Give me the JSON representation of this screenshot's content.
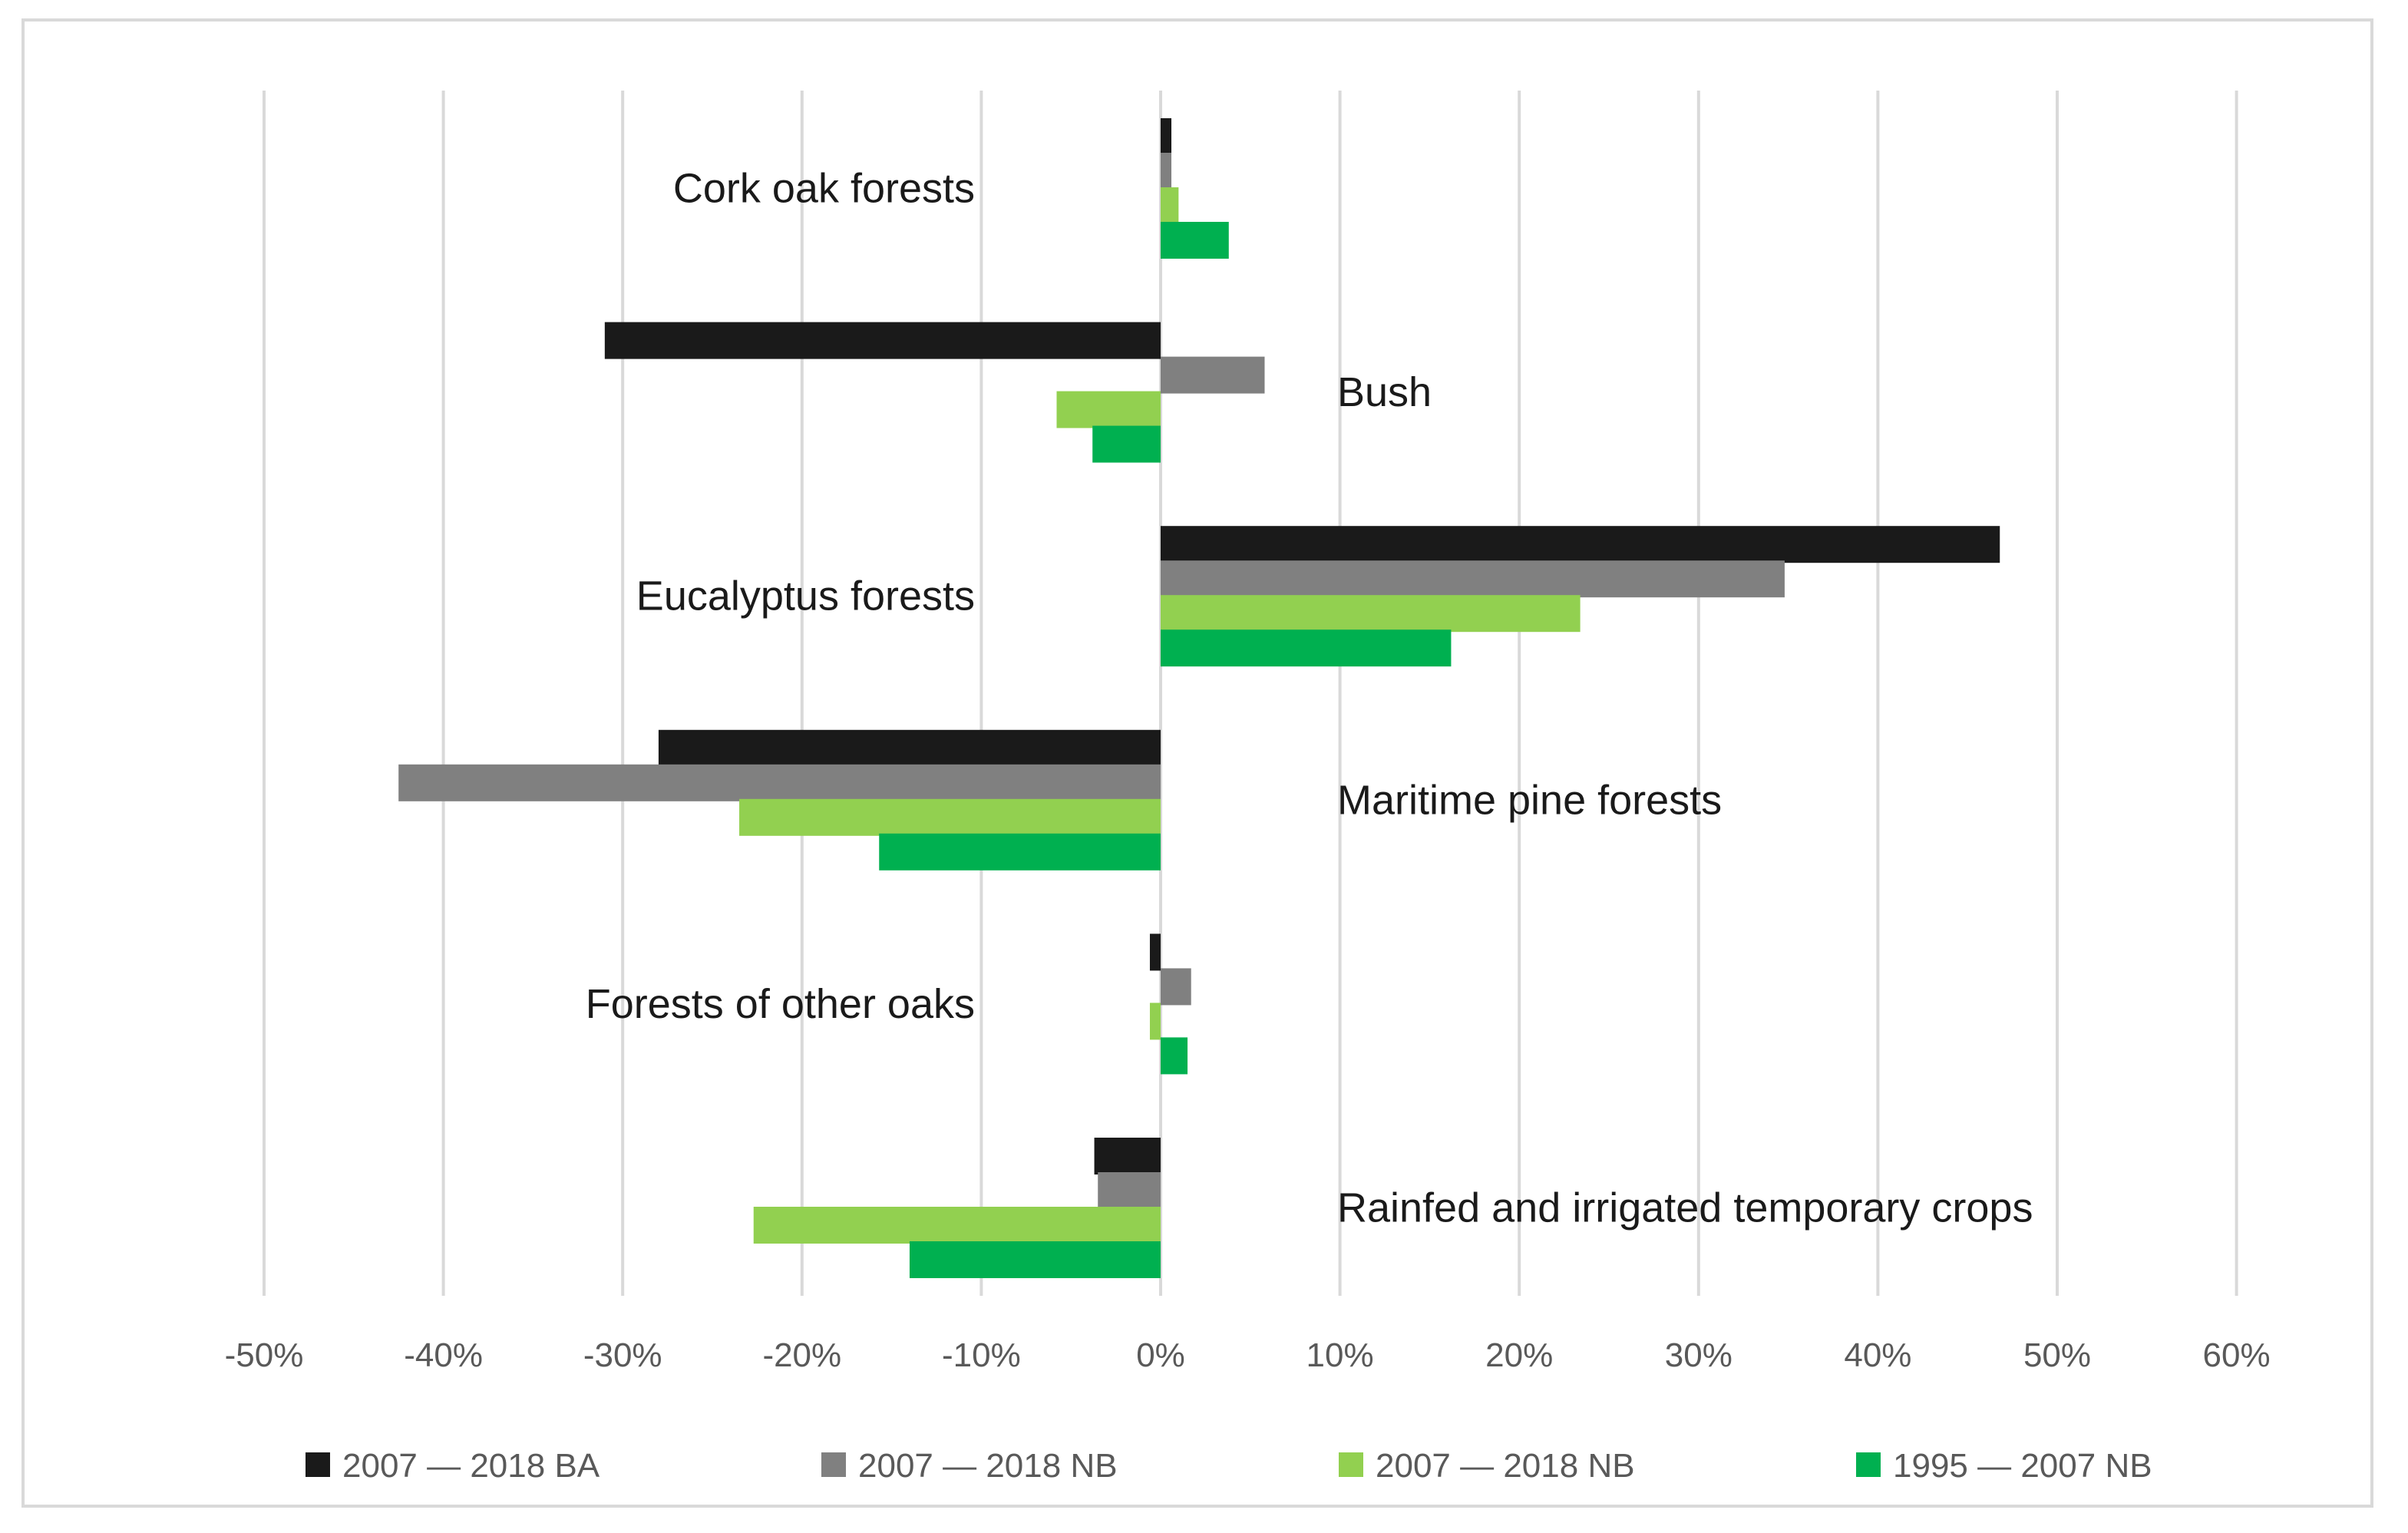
{
  "chart_data": {
    "type": "bar",
    "orientation": "horizontal",
    "title": "",
    "xlabel": "",
    "ylabel": "",
    "xlim": [
      -0.5,
      0.6
    ],
    "x_ticks": [
      -0.5,
      -0.4,
      -0.3,
      -0.2,
      -0.1,
      0,
      0.1,
      0.2,
      0.3,
      0.4,
      0.5,
      0.6
    ],
    "x_tick_labels": [
      "-50%",
      "-40%",
      "-30%",
      "-20%",
      "-10%",
      "0%",
      "10%",
      "20%",
      "30%",
      "40%",
      "50%",
      "60%"
    ],
    "grid": true,
    "legend_position": "bottom",
    "categories": [
      "Cork oak forests",
      "Bush",
      "Eucalyptus forests",
      "Maritime pine forests",
      "Forests of other oaks",
      "Rainfed and irrigated temporary crops"
    ],
    "series": [
      {
        "name": "2007 — 2018 BA",
        "color": "#1a1a1a",
        "values": [
          0.006,
          -0.31,
          0.468,
          -0.28,
          -0.006,
          -0.037
        ]
      },
      {
        "name": "2007 — 2018 NB",
        "color": "#808080",
        "values": [
          0.006,
          0.058,
          0.348,
          -0.425,
          0.017,
          -0.035
        ]
      },
      {
        "name": "2007 — 2018 NB",
        "color": "#92d050",
        "values": [
          0.01,
          -0.058,
          0.234,
          -0.235,
          -0.006,
          -0.227
        ]
      },
      {
        "name": "1995 — 2007 NB",
        "color": "#00b050",
        "values": [
          0.038,
          -0.038,
          0.162,
          -0.157,
          0.015,
          -0.14
        ]
      }
    ]
  }
}
